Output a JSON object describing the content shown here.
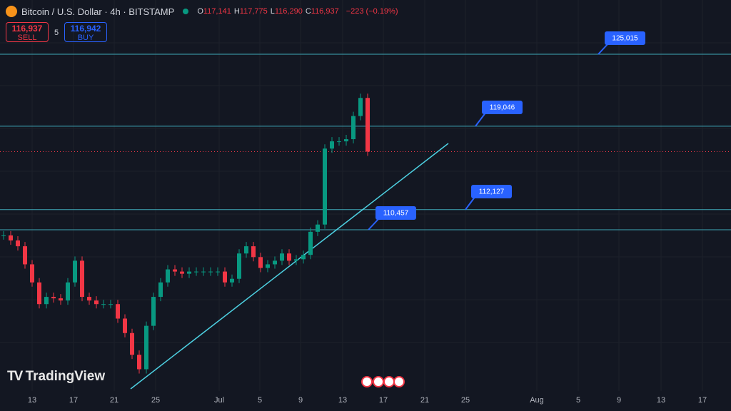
{
  "header": {
    "symbol": "Bitcoin / U.S. Dollar · 4h · BITSTAMP",
    "ohlc": [
      {
        "key": "O",
        "value": "117,141"
      },
      {
        "key": "H",
        "value": "117,775"
      },
      {
        "key": "L",
        "value": "116,290"
      },
      {
        "key": "C",
        "value": "116,937"
      }
    ],
    "change": "−223 (−0.19%)"
  },
  "trade": {
    "sell_price": "116,937",
    "sell": "SELL",
    "spread": "5",
    "buy_price": "116,942",
    "buy": "BUY"
  },
  "price_levels": [
    {
      "value": 125015,
      "label": "125,015"
    },
    {
      "value": 119046,
      "label": "119,046"
    },
    {
      "value": 112127,
      "label": "112,127"
    },
    {
      "value": 110457,
      "label": "110,457"
    }
  ],
  "last_price": 116937,
  "candles": [
    109990,
    109570,
    109090,
    107590,
    106090,
    104290,
    104890,
    104770,
    104590,
    106090,
    107890,
    104890,
    104590,
    104290,
    104290,
    104290,
    103090,
    101890,
    100090,
    98890,
    102490,
    104890,
    106090,
    107170,
    106990,
    106810,
    106990,
    106990,
    106990,
    106990,
    106990,
    106090,
    106390,
    108490,
    109090,
    108190,
    107290,
    107590,
    107890,
    108490,
    107890,
    108010,
    108370,
    110290,
    110890,
    117190,
    117790,
    117790,
    117970,
    119890,
    121390,
    116937
  ],
  "x_axis": [
    "13",
    "17",
    "21",
    "25",
    "Jul",
    "5",
    "9",
    "13",
    "17",
    "21",
    "25",
    "Aug",
    "5",
    "9",
    "13",
    "17"
  ],
  "watermark": "TradingView"
}
